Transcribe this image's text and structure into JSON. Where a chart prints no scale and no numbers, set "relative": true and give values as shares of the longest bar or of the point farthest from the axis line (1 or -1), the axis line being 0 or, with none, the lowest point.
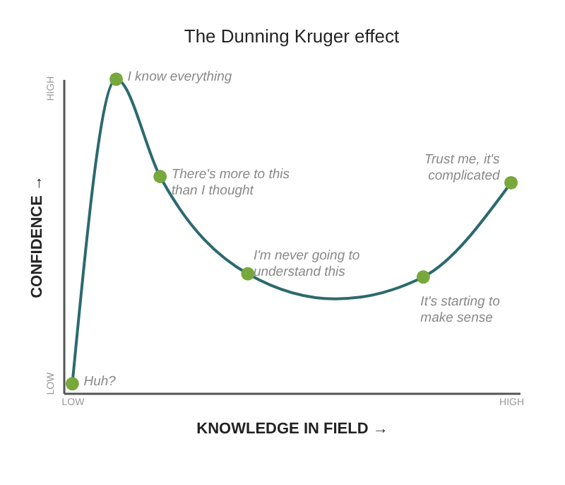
{
  "chart_data": {
    "type": "line",
    "title": "The Dunning Kruger effect",
    "xlabel": "KNOWLEDGE IN FIELD →",
    "ylabel": "CONFIDENCE →",
    "relative": true,
    "grid": false,
    "categories": [
      "LOW",
      null,
      null,
      null,
      null,
      null,
      null,
      null,
      null,
      null,
      null,
      null,
      null,
      null,
      null,
      null,
      null,
      null,
      null,
      null,
      "HIGH"
    ],
    "series": [
      {
        "color": "#2b6a6e",
        "marker": "none",
        "line_style": "solid",
        "values": [
          0.03,
          null,
          1,
          null,
          0.69,
          null,
          null,
          null,
          0.38,
          null,
          null,
          null,
          0.3,
          null,
          null,
          null,
          0.37,
          null,
          null,
          null,
          0.67
        ]
      },
      {
        "type": "scatter",
        "color": "#77a83c",
        "marker": "circle",
        "values": [
          0.03,
          null,
          1,
          null,
          0.69,
          null,
          null,
          null,
          0.38,
          null,
          null,
          null,
          null,
          null,
          null,
          null,
          0.37,
          null,
          null,
          null,
          0.67
        ]
      }
    ],
    "annotations": [
      "Huh?",
      "I know everything",
      "There's more to this\nthan I thought",
      "I'm never going to\nunderstand this",
      "It's starting to\nmake sense",
      "Trust me, it's\ncomplicated",
      "LOW",
      "HIGH"
    ]
  }
}
